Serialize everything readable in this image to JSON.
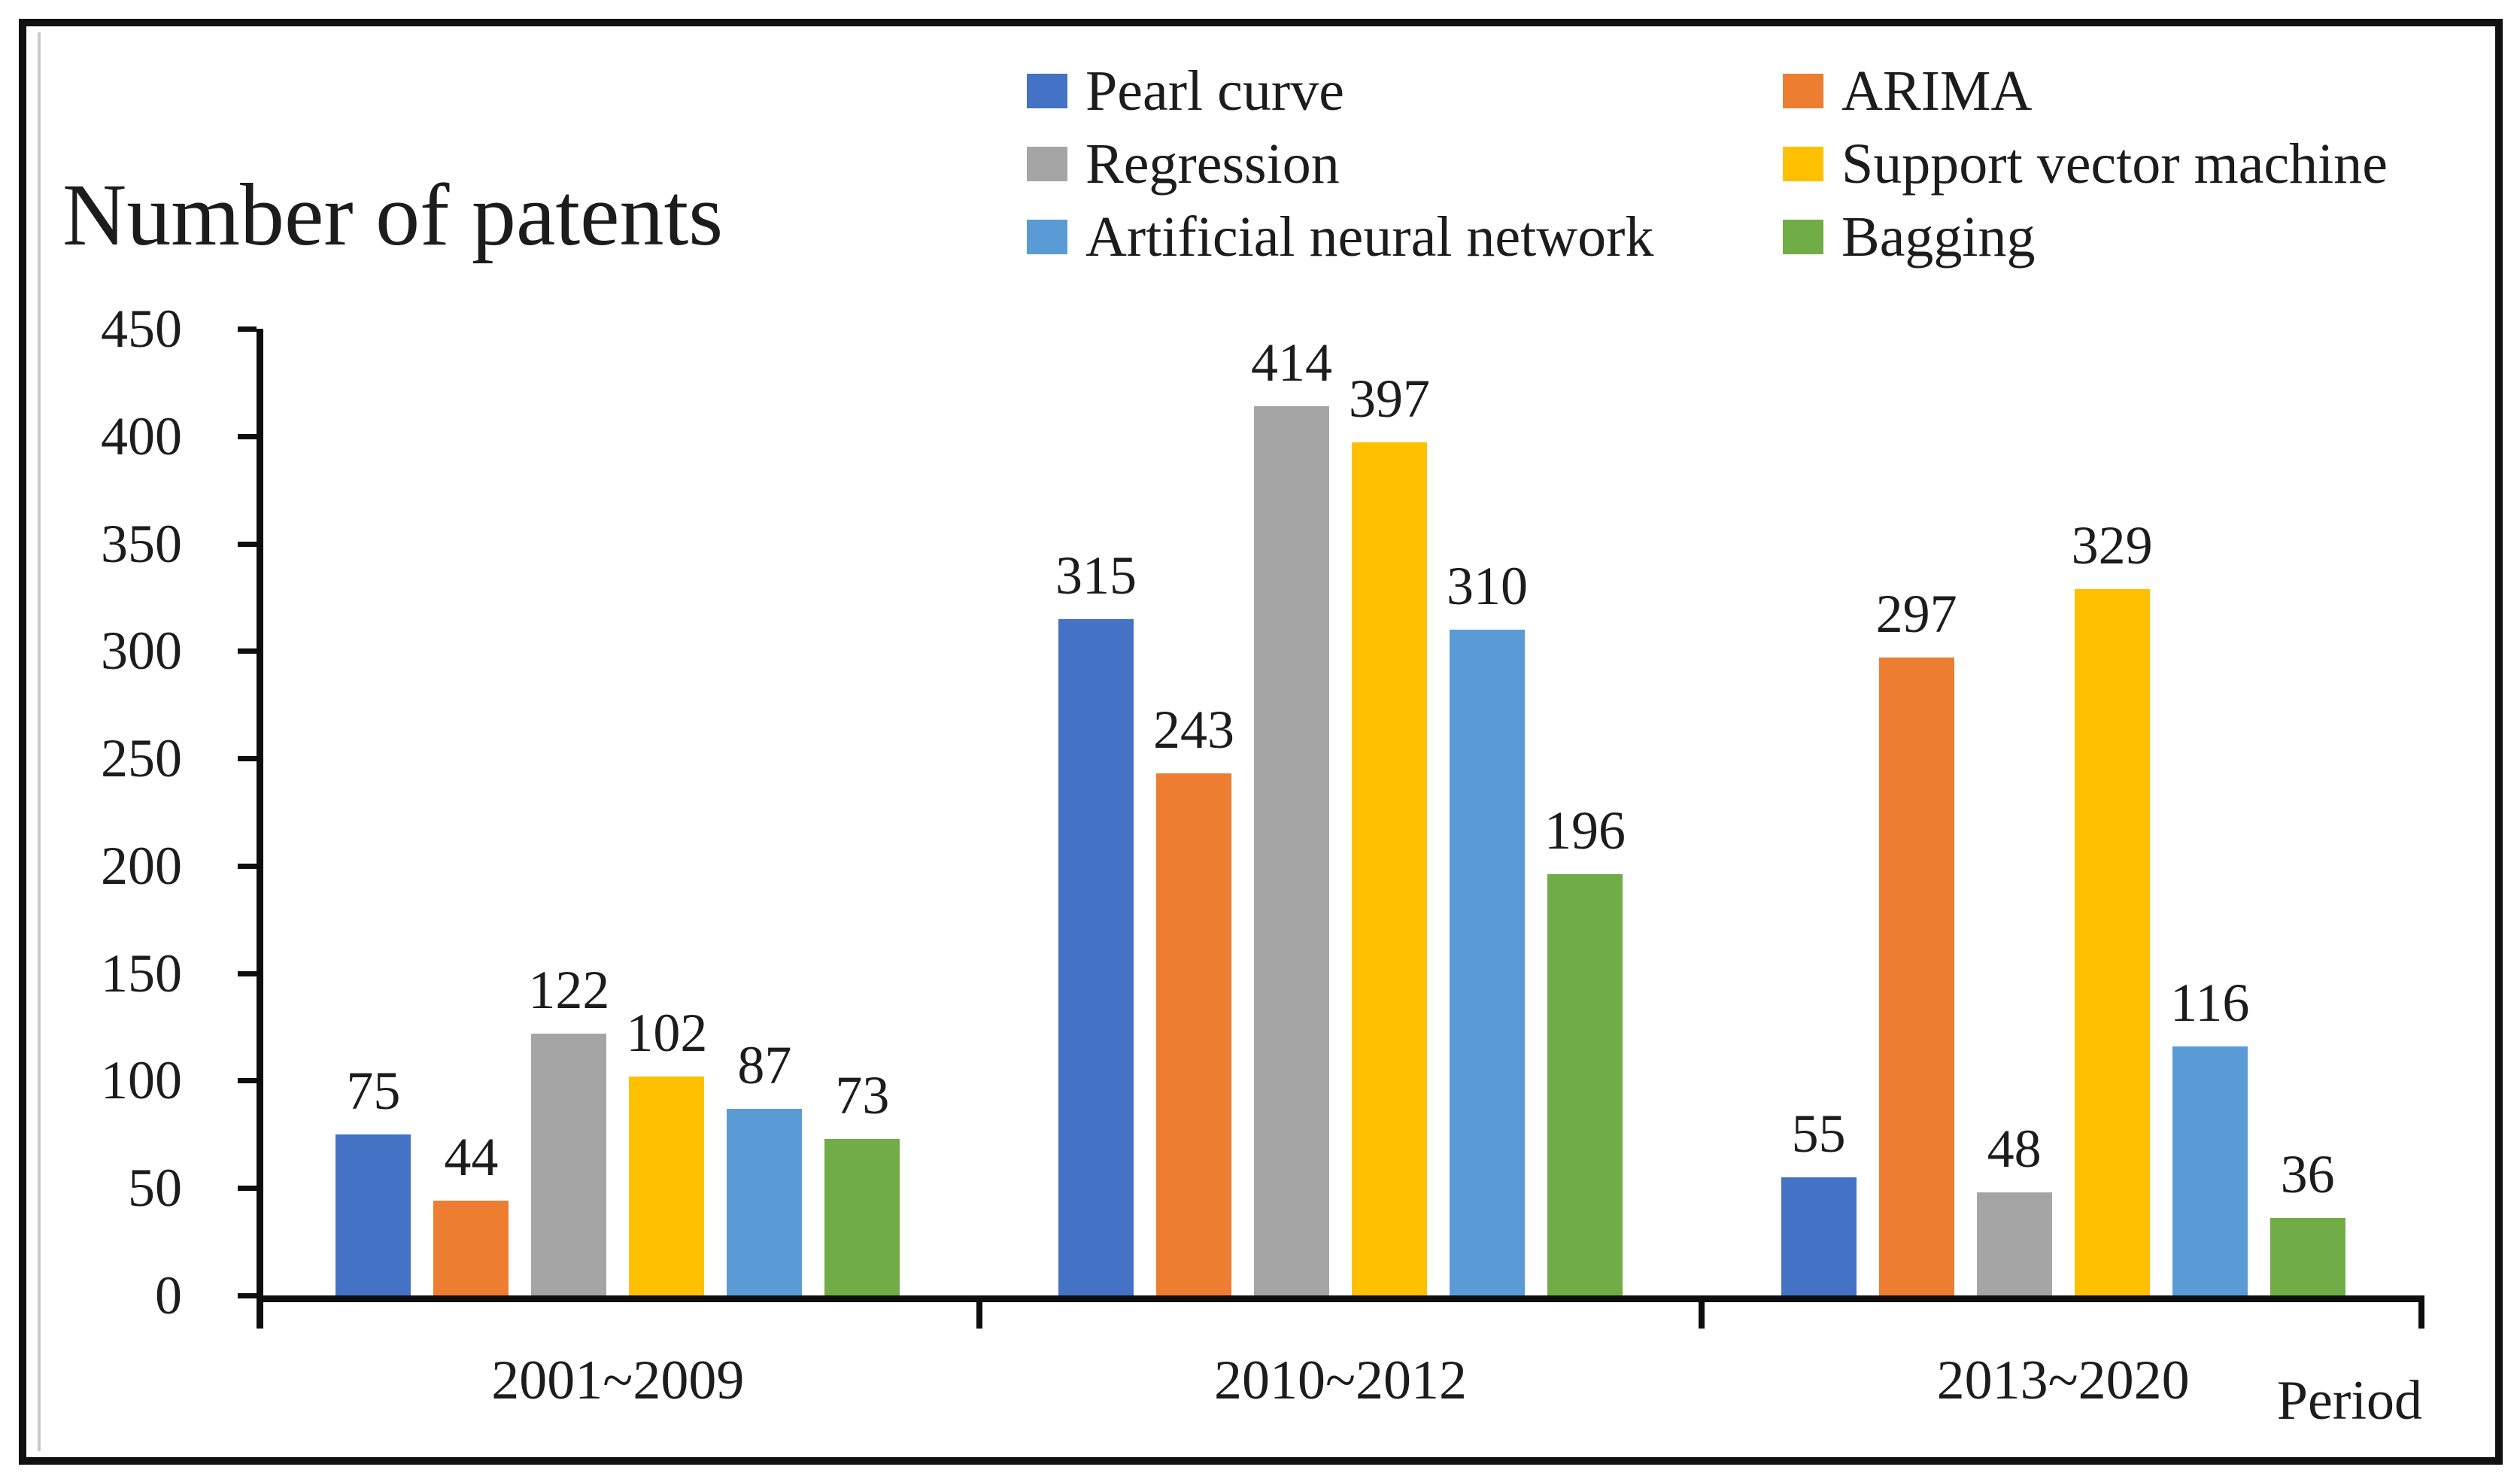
{
  "title": "Number of patents",
  "x_axis_title": "Period",
  "legend": {
    "items": [
      {
        "label": "Pearl curve",
        "color": "#4472C4"
      },
      {
        "label": "ARIMA",
        "color": "#ED7D31"
      },
      {
        "label": "Regression",
        "color": "#A5A5A5"
      },
      {
        "label": "Support vector machine",
        "color": "#FFC000"
      },
      {
        "label": "Artificial neural network",
        "color": "#5B9BD5"
      },
      {
        "label": "Bagging",
        "color": "#70AD47"
      }
    ]
  },
  "chart_data": {
    "type": "bar",
    "title": "Number of patents",
    "xlabel": "Period",
    "ylabel": "Number of patents",
    "categories": [
      "2001~2009",
      "2010~2012",
      "2013~2020"
    ],
    "series": [
      {
        "name": "Pearl curve",
        "color": "#4472C4",
        "values": [
          75,
          315,
          55
        ]
      },
      {
        "name": "ARIMA",
        "color": "#ED7D31",
        "values": [
          44,
          243,
          297
        ]
      },
      {
        "name": "Regression",
        "color": "#A5A5A5",
        "values": [
          122,
          414,
          48
        ]
      },
      {
        "name": "Support vector machine",
        "color": "#FFC000",
        "values": [
          102,
          397,
          329
        ]
      },
      {
        "name": "Artificial neural network",
        "color": "#5B9BD5",
        "values": [
          87,
          310,
          116
        ]
      },
      {
        "name": "Bagging",
        "color": "#70AD47",
        "values": [
          73,
          196,
          36
        ]
      }
    ],
    "ylim": [
      0,
      450
    ],
    "y_tick_step": 50,
    "y_tick_labels": [
      "0",
      "50",
      "100",
      "150",
      "200",
      "250",
      "300",
      "350",
      "400",
      "450"
    ],
    "grid": false,
    "data_labels": true,
    "legend_position": "top"
  }
}
